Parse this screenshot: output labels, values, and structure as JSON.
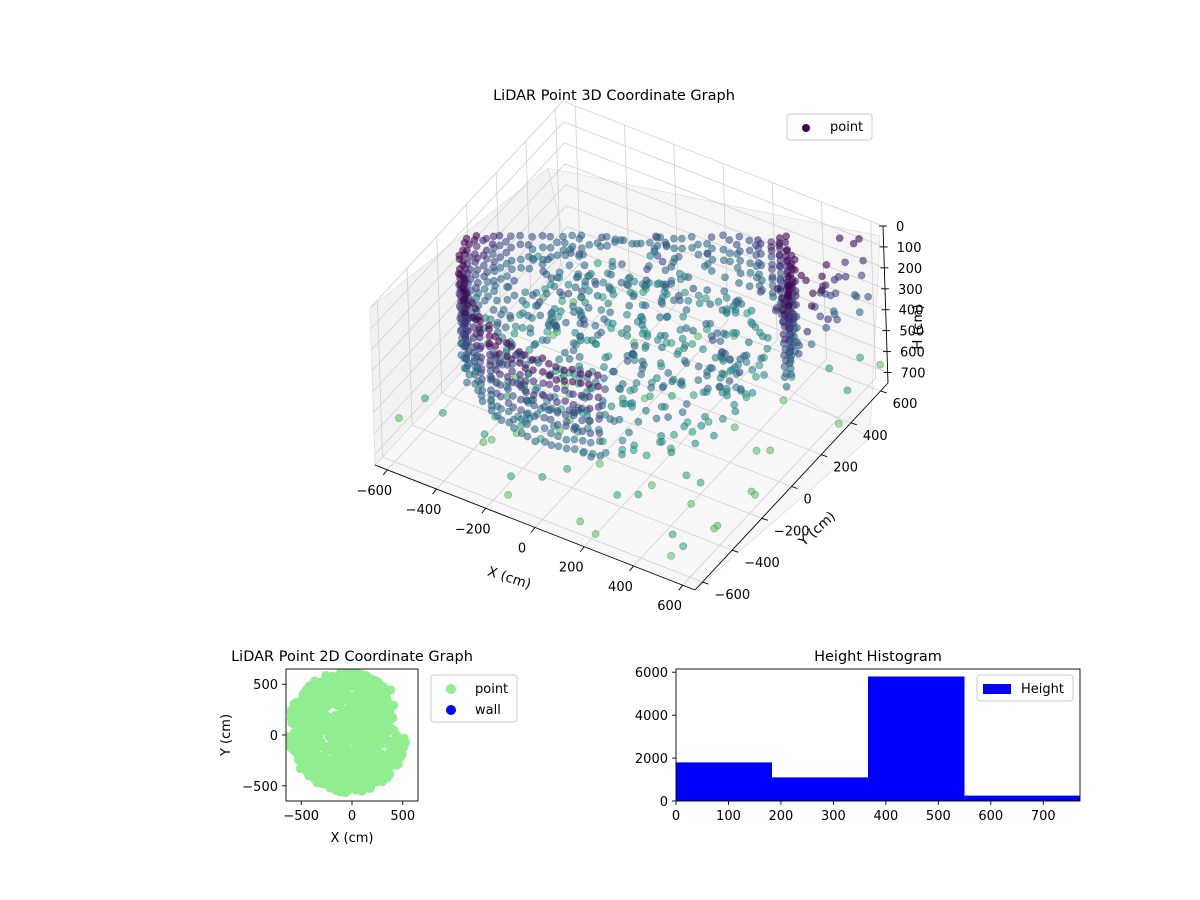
{
  "chart_data": [
    {
      "type": "scatter",
      "subtype": "3d",
      "title": "LiDAR Point 3D Coordinate Graph",
      "xlabel": "X (cm)",
      "ylabel": "Y (cm)",
      "zlabel": "H (cm)",
      "xticks": [
        "−600",
        "−400",
        "−200",
        "0",
        "200",
        "400",
        "600"
      ],
      "yticks": [
        "−600",
        "−400",
        "−200",
        "0",
        "200",
        "400",
        "600"
      ],
      "zticks": [
        "0",
        "100",
        "200",
        "300",
        "400",
        "500",
        "600",
        "700"
      ],
      "xlim": [
        -650,
        650
      ],
      "ylim": [
        -650,
        650
      ],
      "zlim": [
        0,
        750
      ],
      "z_axis_inverted": true,
      "legend": [
        "point"
      ],
      "legend_position": "top-right",
      "colormap": "viridis",
      "series": [
        {
          "name": "point",
          "color": "#440154"
        }
      ]
    },
    {
      "type": "scatter",
      "title": "LiDAR Point 2D Coordinate Graph",
      "xlabel": "X (cm)",
      "ylabel": "Y (cm)",
      "xticks": [
        "−500",
        "0",
        "500"
      ],
      "yticks": [
        "500",
        "0",
        "−500"
      ],
      "xlim": [
        -650,
        650
      ],
      "ylim": [
        -650,
        650
      ],
      "legend_position": "outside-right",
      "series": [
        {
          "name": "point",
          "color": "#90ee90"
        },
        {
          "name": "wall",
          "color": "#0000ff"
        }
      ]
    },
    {
      "type": "bar",
      "subtype": "histogram",
      "title": "Height Histogram",
      "xticks": [
        "0",
        "100",
        "200",
        "300",
        "400",
        "500",
        "600",
        "700"
      ],
      "yticks": [
        "0",
        "2000",
        "4000",
        "6000"
      ],
      "xlim": [
        0,
        770
      ],
      "ylim": [
        0,
        6150
      ],
      "bins": [
        {
          "x0": 0,
          "x1": 183,
          "count": 1800
        },
        {
          "x0": 183,
          "x1": 366,
          "count": 1100
        },
        {
          "x0": 366,
          "x1": 550,
          "count": 5800
        },
        {
          "x0": 550,
          "x1": 770,
          "count": 250
        }
      ],
      "legend": [
        "Height"
      ],
      "legend_position": "top-right",
      "color": "#0000ff"
    }
  ]
}
